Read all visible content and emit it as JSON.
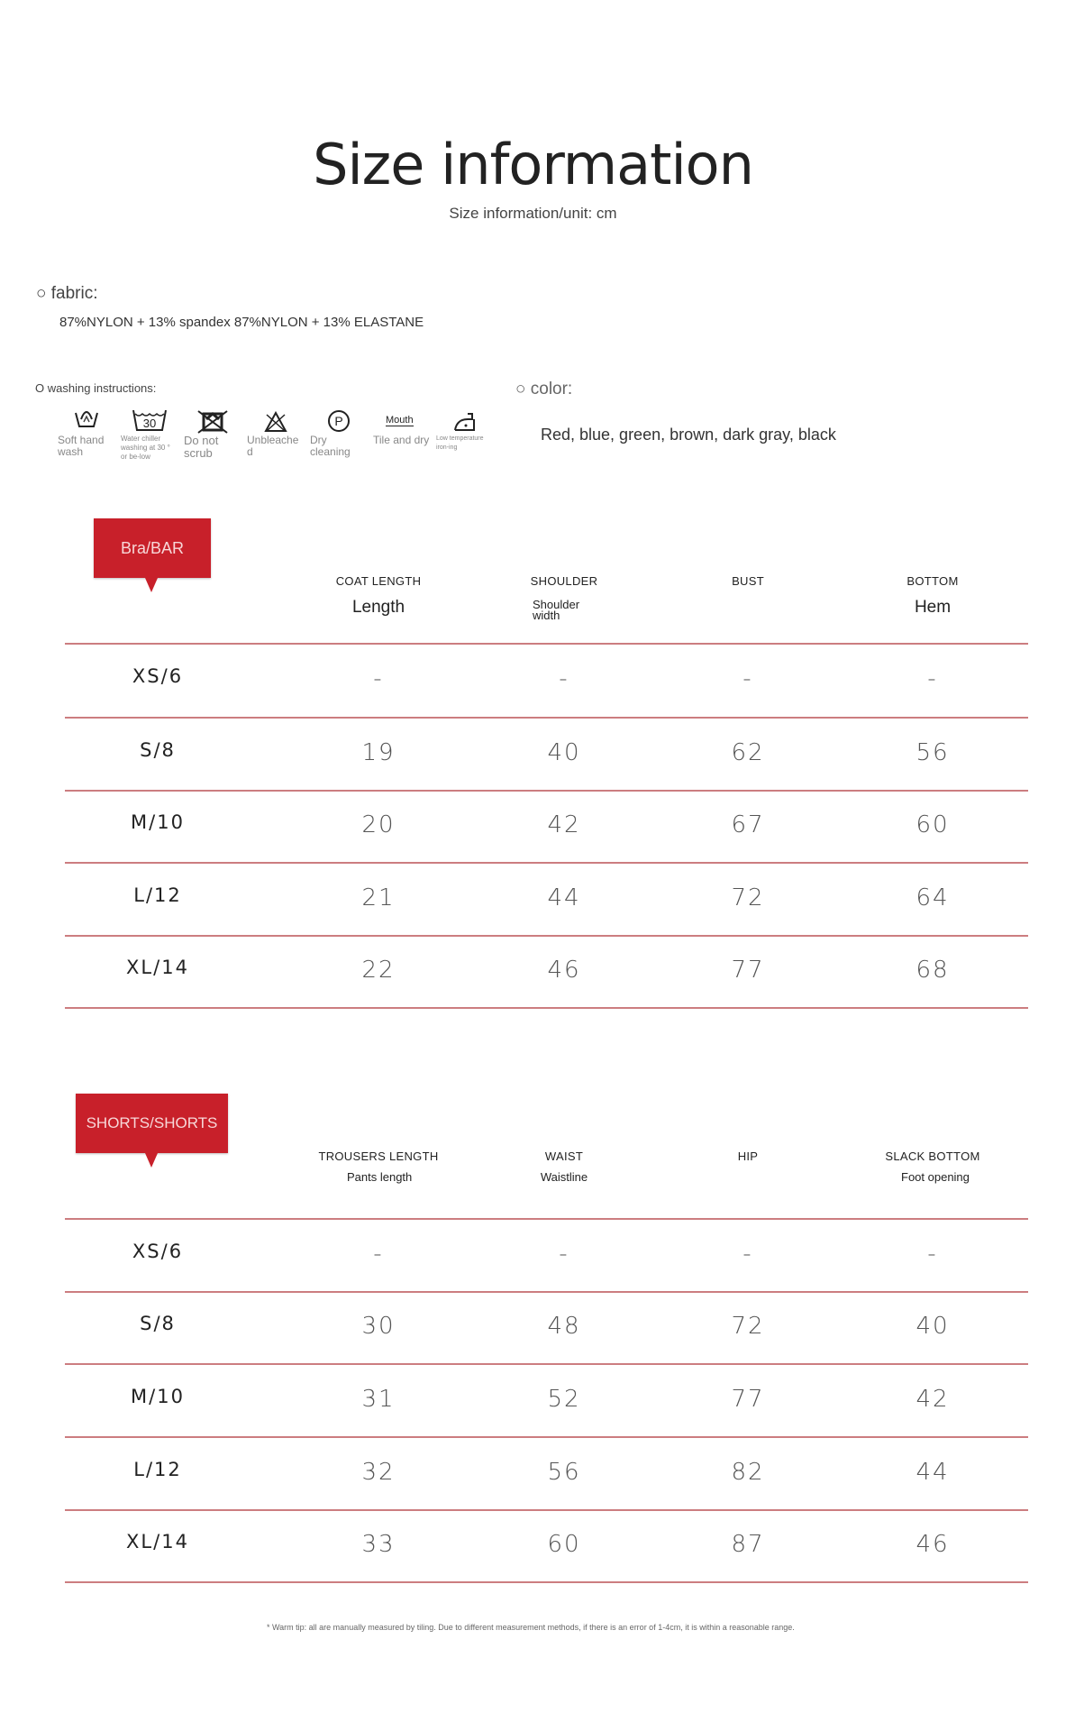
{
  "title": "Size information",
  "subtitle": "Size information/unit: cm",
  "fabric": {
    "label": "○ fabric:",
    "text": "87%NYLON + 13% spandex 87%NYLON + 13% ELASTANE"
  },
  "washing": {
    "label": "O washing instructions:",
    "icons": [
      {
        "name": "hand-wash-icon",
        "caption": "Soft hand wash"
      },
      {
        "name": "wash-30-icon",
        "symbol": "30",
        "caption": "Water chiller washing at 30 ° or be-low"
      },
      {
        "name": "do-not-tumble-icon",
        "caption": "Do not scrub"
      },
      {
        "name": "no-bleach-icon",
        "caption": "Unbleached"
      },
      {
        "name": "dry-clean-p-icon",
        "symbol": "P",
        "caption": "Dry cleaning"
      },
      {
        "name": "hang-dry-icon",
        "symbol": "Mouth",
        "caption": "Tile and dry"
      },
      {
        "name": "low-iron-icon",
        "caption": "Low temperature iron-ing"
      }
    ]
  },
  "color": {
    "label": "○ color:",
    "text": "Red, blue, green, brown, dark gray, black"
  },
  "accent": "#c8202a",
  "bra": {
    "tag": "Bra/BAR",
    "headers": [
      {
        "label": "COAT LENGTH",
        "sub": "Length"
      },
      {
        "label": "SHOULDER",
        "sub": "Shoulder width"
      },
      {
        "label": "BUST",
        "sub": ""
      },
      {
        "label": "BOTTOM",
        "sub": "Hem"
      }
    ],
    "rows": [
      [
        "XS/6",
        "-",
        "-",
        "-",
        "-"
      ],
      [
        "S/8",
        "19",
        "40",
        "62",
        "56"
      ],
      [
        "M/10",
        "20",
        "42",
        "67",
        "60"
      ],
      [
        "L/12",
        "21",
        "44",
        "72",
        "64"
      ],
      [
        "XL/14",
        "22",
        "46",
        "77",
        "68"
      ]
    ]
  },
  "shorts": {
    "tag": "SHORTS/SHORTS",
    "headers": [
      {
        "label": "TROUSERS LENGTH",
        "sub": "Pants length"
      },
      {
        "label": "WAIST",
        "sub": "Waistline"
      },
      {
        "label": "HIP",
        "sub": ""
      },
      {
        "label": "SLACK BOTTOM",
        "sub": "Foot opening"
      }
    ],
    "rows": [
      [
        "XS/6",
        "-",
        "-",
        "-",
        "-"
      ],
      [
        "S/8",
        "30",
        "48",
        "72",
        "40"
      ],
      [
        "M/10",
        "31",
        "52",
        "77",
        "42"
      ],
      [
        "L/12",
        "32",
        "56",
        "82",
        "44"
      ],
      [
        "XL/14",
        "33",
        "60",
        "87",
        "46"
      ]
    ]
  },
  "footnote": "* Warm tip: all are manually measured by tiling. Due to different measurement methods, if there is an error of 1-4cm, it is within a reasonable range."
}
